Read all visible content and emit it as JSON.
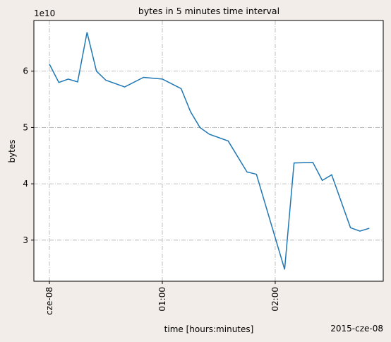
{
  "chart_data": {
    "type": "line",
    "title": "bytes in 5 minutes time interval",
    "xlabel": "time [hours:minutes]",
    "ylabel": "bytes",
    "y_offset_label": "1e10",
    "x_offset_label": "2015-cze-08",
    "x": [
      0,
      5,
      10,
      15,
      20,
      25,
      30,
      40,
      50,
      60,
      70,
      75,
      80,
      85,
      95,
      105,
      110,
      125,
      130,
      140,
      145,
      150,
      160,
      165,
      170
    ],
    "series": [
      {
        "name": "bytes",
        "color": "#1f77b4",
        "values": [
          6.125,
          5.8,
          5.86,
          5.81,
          6.69,
          6.0,
          5.84,
          5.72,
          5.89,
          5.86,
          5.69,
          5.28,
          5.0,
          4.88,
          4.76,
          4.21,
          4.17,
          2.48,
          4.37,
          4.38,
          4.06,
          4.16,
          3.22,
          3.16,
          3.21
        ]
      }
    ],
    "xlim": [
      -8.25,
      177.4
    ],
    "ylim": [
      2.27,
      6.9
    ],
    "xticks": [
      {
        "value": 0,
        "label": "cze-08"
      },
      {
        "value": 60,
        "label": "01:00"
      },
      {
        "value": 120,
        "label": "02:00"
      }
    ],
    "yticks": [
      3,
      4,
      5,
      6
    ],
    "grid": true
  }
}
